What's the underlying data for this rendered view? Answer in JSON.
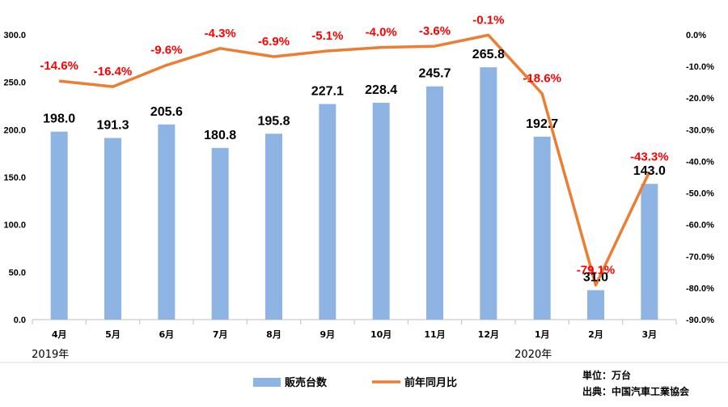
{
  "chart_data": {
    "type": "bar",
    "categories": [
      "4月",
      "5月",
      "6月",
      "7月",
      "8月",
      "9月",
      "10月",
      "11月",
      "12月",
      "1月",
      "2月",
      "3月"
    ],
    "year_labels": [
      {
        "text": "2019年",
        "category_index": 0
      },
      {
        "text": "2020年",
        "category_index": 9
      }
    ],
    "series": [
      {
        "name": "販売台数",
        "type": "bar",
        "axis": "left",
        "color": "#8eb4e3",
        "values": [
          198.0,
          191.3,
          205.6,
          180.8,
          195.8,
          227.1,
          228.4,
          245.7,
          265.8,
          192.7,
          31.0,
          143.0
        ],
        "labels": [
          "198.0",
          "191.3",
          "205.6",
          "180.8",
          "195.8",
          "227.1",
          "228.4",
          "245.7",
          "265.8",
          "192.7",
          "31.0",
          "143.0"
        ]
      },
      {
        "name": "前年同月比",
        "type": "line",
        "axis": "right",
        "color": "#ed7d31",
        "values": [
          -14.6,
          -16.4,
          -9.6,
          -4.3,
          -6.9,
          -5.1,
          -4.0,
          -3.6,
          -0.1,
          -18.6,
          -79.1,
          -43.3
        ],
        "labels": [
          "-14.6%",
          "-16.4%",
          "-9.6%",
          "-4.3%",
          "-6.9%",
          "-5.1%",
          "-4.0%",
          "-3.6%",
          "-0.1%",
          "-18.6%",
          "-79.1%",
          "-43.3%"
        ],
        "label_color": "#ff0000"
      }
    ],
    "y_left": {
      "ylim": [
        0,
        300
      ],
      "ticks": [
        "0.0",
        "50.0",
        "100.0",
        "150.0",
        "200.0",
        "250.0",
        "300.0"
      ]
    },
    "y_right": {
      "ylim": [
        -90,
        0
      ],
      "ticks": [
        "0.0%",
        "-10.0%",
        "-20.0%",
        "-30.0%",
        "-40.0%",
        "-50.0%",
        "-60.0%",
        "-70.0%",
        "-80.0%",
        "-90.0%"
      ]
    },
    "grid": false,
    "legend_position": "bottom",
    "notes": [
      "単位：万台",
      "出典：中国汽車工業協会"
    ]
  }
}
